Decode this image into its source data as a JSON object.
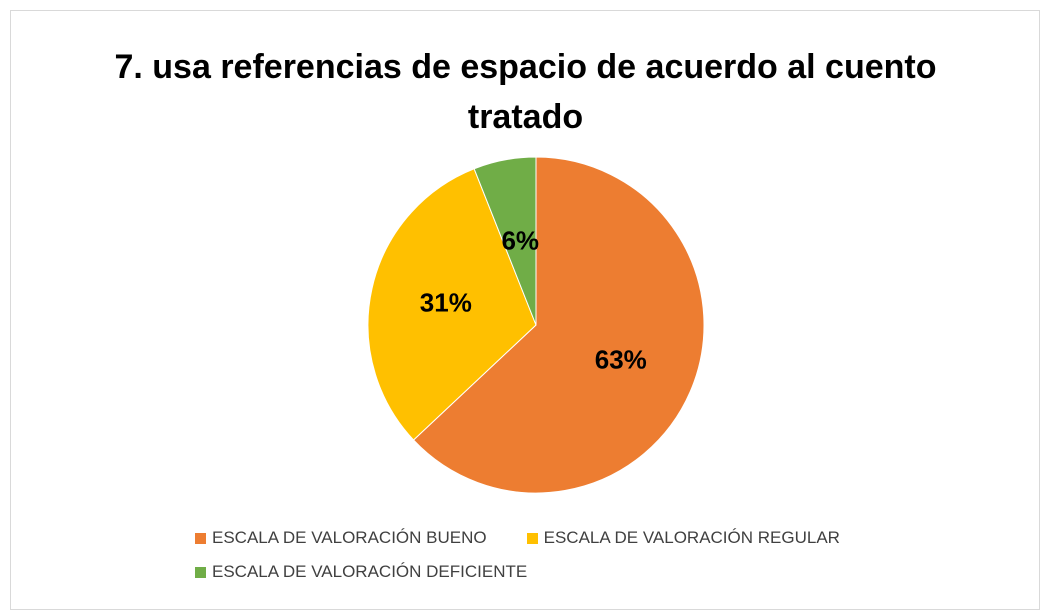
{
  "chart_data": {
    "type": "pie",
    "title": "7. usa referencias de espacio de acuerdo al cuento tratado",
    "categories": [
      "ESCALA DE VALORACIÓN BUENO",
      "ESCALA DE VALORACIÓN REGULAR",
      "ESCALA DE VALORACIÓN DEFICIENTE"
    ],
    "values": [
      63,
      31,
      6
    ],
    "value_labels": [
      "63%",
      "31%",
      "6%"
    ],
    "colors": [
      "#ed7d31",
      "#ffc000",
      "#70ad47"
    ],
    "legend": "bottom"
  }
}
